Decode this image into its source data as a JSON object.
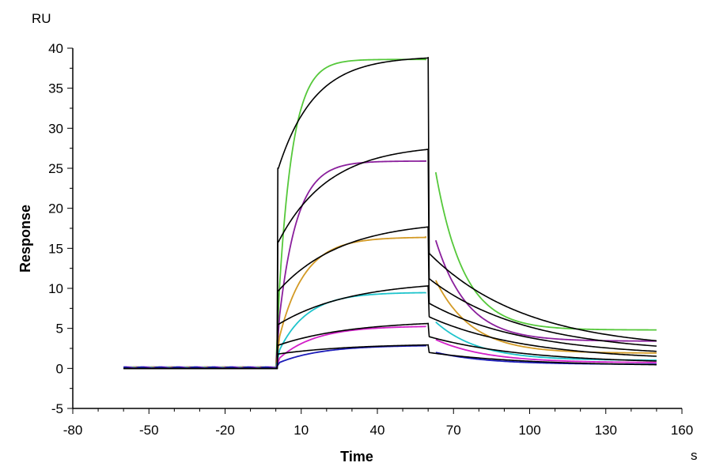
{
  "chart_data": {
    "type": "line",
    "title": "",
    "xlabel": "Time",
    "ylabel": "Response",
    "x_unit": "s",
    "y_unit": "RU",
    "xlim": [
      -80,
      160
    ],
    "ylim": [
      -5,
      40
    ],
    "x_ticks": [
      -80,
      -50,
      -20,
      10,
      40,
      70,
      100,
      130,
      160
    ],
    "y_ticks": [
      -5,
      0,
      5,
      10,
      15,
      20,
      25,
      30,
      35,
      40
    ],
    "grid": false,
    "legend": "none",
    "association_phase": [
      1,
      60
    ],
    "series": [
      {
        "color": "#55c83a",
        "baseline": 0.1,
        "plateau": 38.6,
        "assoc_rate": 0.18,
        "end_of_association": 38.5,
        "dissoc_start": 24.5,
        "dissoc_offset": 4.8,
        "dissoc_rate": 0.09,
        "end_value": 4.8
      },
      {
        "color": "#8a1f9c",
        "baseline": 0.1,
        "plateau": 25.9,
        "assoc_rate": 0.14,
        "end_of_association": 26.0,
        "dissoc_start": 16.0,
        "dissoc_offset": 3.4,
        "dissoc_rate": 0.08,
        "end_value": 3.6
      },
      {
        "color": "#d39a25",
        "baseline": 0.1,
        "plateau": 16.4,
        "assoc_rate": 0.1,
        "end_of_association": 16.5,
        "dissoc_start": 11.0,
        "dissoc_offset": 1.9,
        "dissoc_rate": 0.07,
        "end_value": 2.2
      },
      {
        "color": "#1fc4cc",
        "baseline": 0.1,
        "plateau": 9.5,
        "assoc_rate": 0.09,
        "end_of_association": 9.5,
        "dissoc_start": 5.8,
        "dissoc_offset": 1.0,
        "dissoc_rate": 0.06,
        "end_value": 1.3
      },
      {
        "color": "#d21ec8",
        "baseline": 0.1,
        "plateau": 5.3,
        "assoc_rate": 0.07,
        "end_of_association": 5.2,
        "dissoc_start": 3.6,
        "dissoc_offset": 0.7,
        "dissoc_rate": 0.05,
        "end_value": 0.8
      },
      {
        "color": "#1c1cb8",
        "baseline": 0.1,
        "plateau": 2.9,
        "assoc_rate": 0.06,
        "end_of_association": 2.9,
        "dissoc_start": 2.0,
        "dissoc_offset": 0.5,
        "dissoc_rate": 0.05,
        "end_value": 0.6
      }
    ],
    "fit_series": [
      {
        "color": "#000000",
        "start": 25.0,
        "plateau": 39.0,
        "assoc_rate": 0.07,
        "end_of_association": 38.9,
        "dissoc_start": 14.5,
        "dissoc_rate": 0.025,
        "end_value": 2.3
      },
      {
        "color": "#000000",
        "start": 15.8,
        "plateau": 28.0,
        "assoc_rate": 0.05,
        "end_of_association": 27.0,
        "dissoc_start": 11.3,
        "dissoc_rate": 0.025,
        "end_value": 1.9
      },
      {
        "color": "#000000",
        "start": 9.7,
        "plateau": 18.5,
        "assoc_rate": 0.04,
        "end_of_association": 17.4,
        "dissoc_start": 8.2,
        "dissoc_rate": 0.025,
        "end_value": 1.5
      },
      {
        "color": "#000000",
        "start": 5.5,
        "plateau": 11.0,
        "assoc_rate": 0.035,
        "end_of_association": 10.2,
        "dissoc_start": 6.5,
        "dissoc_rate": 0.025,
        "end_value": 1.0
      },
      {
        "color": "#000000",
        "start": 2.9,
        "plateau": 6.0,
        "assoc_rate": 0.035,
        "end_of_association": 5.6,
        "dissoc_start": 4.0,
        "dissoc_rate": 0.025,
        "end_value": 0.6
      },
      {
        "color": "#000000",
        "start": 1.8,
        "plateau": 3.1,
        "assoc_rate": 0.035,
        "end_of_association": 2.9,
        "dissoc_start": 2.0,
        "dissoc_rate": 0.025,
        "end_value": 0.3
      }
    ]
  }
}
